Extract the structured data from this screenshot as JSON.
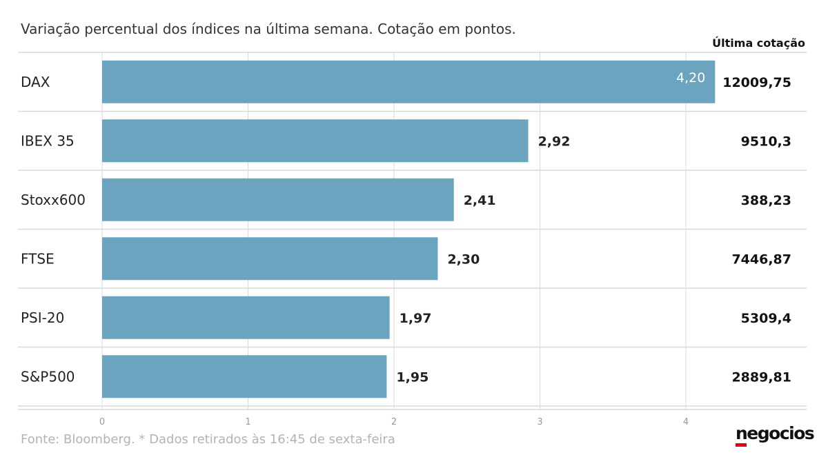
{
  "subtitle": "Variação percentual dos índices na última semana. Cotação em pontos.",
  "source": "Fonte: Bloomberg.  * Dados retirados às 16:45 de sexta-feira",
  "logo": "negocios",
  "colors": {
    "bar": "#6aa4bf",
    "grid": "#d9d9d9",
    "axis_text": "#999999",
    "accent_logo": "#e0001b"
  },
  "chart_data": {
    "type": "bar",
    "orientation": "horizontal",
    "title": "Variação percentual dos índices na última semana. Cotação em pontos.",
    "categories": [
      "DAX",
      "IBEX 35",
      "Stoxx600",
      "FTSE",
      "PSI-20",
      "S&P500"
    ],
    "values": [
      4.2,
      2.92,
      2.41,
      2.3,
      1.97,
      1.95
    ],
    "value_labels": [
      "4,20",
      "2,92",
      "2,41",
      "2,30",
      "1,97",
      "1,95"
    ],
    "xlim": [
      0,
      4.2
    ],
    "xticks": [
      "0",
      "1",
      "2",
      "3",
      "4"
    ],
    "right_column_header": "Última cotação",
    "right_column": [
      "12009,75",
      "9510,3",
      "388,23",
      "7446,87",
      "5309,4",
      "2889,81"
    ],
    "grid": true
  }
}
